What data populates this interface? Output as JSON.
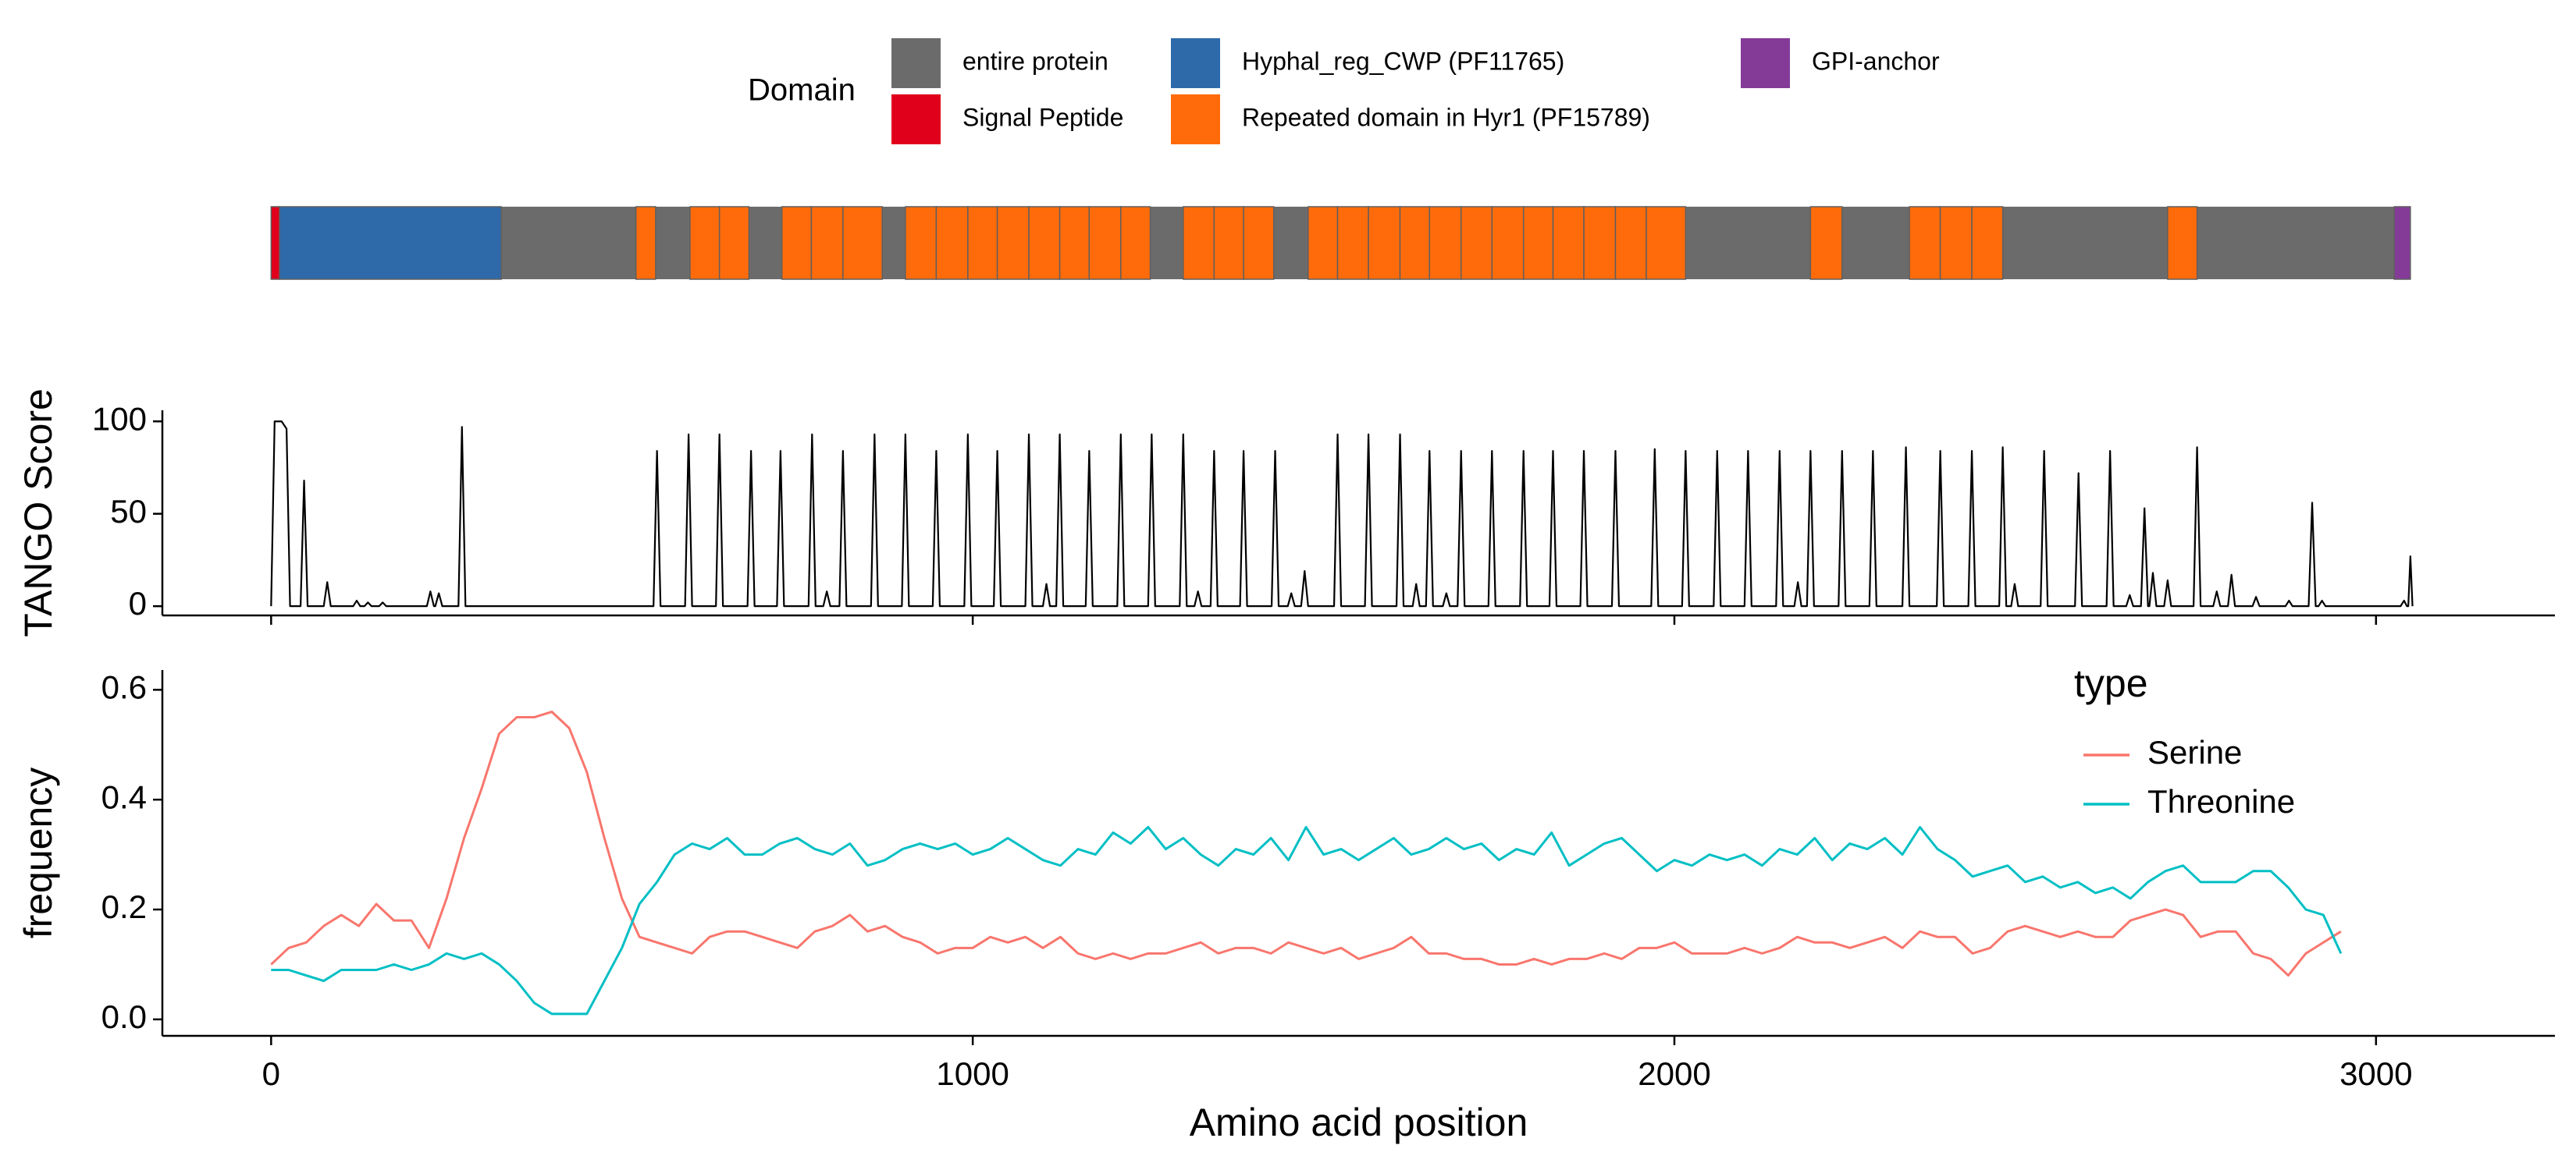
{
  "chart_data": [
    {
      "type": "domain_track",
      "legend_title": "Domain",
      "xlim": [
        -155,
        3255
      ],
      "series": [
        {
          "name": "entire protein",
          "color": "#6b6b6b",
          "segments": [
            [
              0,
              3049
            ]
          ]
        },
        {
          "name": "Signal Peptide",
          "color": "#e0001b",
          "segments": [
            [
              0,
              12
            ]
          ]
        },
        {
          "name": "Hyphal_reg_CWP (PF11765)",
          "color": "#2e6aa9",
          "segments": [
            [
              12,
              328
            ]
          ]
        },
        {
          "name": "Repeated domain in Hyr1 (PF15789)",
          "color": "#ff6b0a",
          "segments": [
            [
              520,
              548
            ],
            [
              597,
              639
            ],
            [
              639,
              681
            ],
            [
              728,
              770
            ],
            [
              770,
              815
            ],
            [
              815,
              871
            ],
            [
              904,
              948
            ],
            [
              948,
              993
            ],
            [
              993,
              1035
            ],
            [
              1035,
              1080
            ],
            [
              1080,
              1124
            ],
            [
              1124,
              1166
            ],
            [
              1166,
              1211
            ],
            [
              1211,
              1253
            ],
            [
              1300,
              1344
            ],
            [
              1344,
              1386
            ],
            [
              1386,
              1429
            ],
            [
              1478,
              1520
            ],
            [
              1520,
              1564
            ],
            [
              1564,
              1609
            ],
            [
              1609,
              1651
            ],
            [
              1651,
              1696
            ],
            [
              1696,
              1740
            ],
            [
              1740,
              1785
            ],
            [
              1785,
              1827
            ],
            [
              1827,
              1871
            ],
            [
              1871,
              1916
            ],
            [
              1916,
              1960
            ],
            [
              1960,
              2016
            ],
            [
              2194,
              2239
            ],
            [
              2335,
              2379
            ],
            [
              2379,
              2424
            ],
            [
              2424,
              2468
            ],
            [
              2703,
              2745
            ]
          ]
        },
        {
          "name": "GPI-anchor",
          "color": "#843b98",
          "segments": [
            [
              3026,
              3049
            ]
          ]
        }
      ]
    },
    {
      "type": "line",
      "y_label": "TANGO Score",
      "xlim": [
        -155,
        3255
      ],
      "xticks": [
        0,
        1000,
        2000,
        3000
      ],
      "ylim": [
        -5,
        106
      ],
      "yticks": [
        0,
        50,
        100
      ],
      "series": [
        {
          "color": "#000000",
          "x": [
            0,
            5,
            15,
            22,
            27,
            42,
            47,
            52,
            75,
            80,
            85,
            117,
            122,
            127,
            133,
            138,
            143,
            154,
            159,
            164,
            222,
            227,
            232,
            234,
            239,
            244,
            267,
            272,
            277,
            545,
            550,
            555,
            590,
            595,
            600,
            634,
            639,
            644,
            679,
            684,
            689,
            721,
            726,
            731,
            766,
            771,
            776,
            787,
            792,
            797,
            810,
            815,
            820,
            855,
            860,
            865,
            899,
            904,
            909,
            943,
            948,
            953,
            988,
            993,
            998,
            1030,
            1035,
            1040,
            1075,
            1080,
            1085,
            1100,
            1105,
            1110,
            1119,
            1124,
            1129,
            1161,
            1166,
            1171,
            1206,
            1211,
            1216,
            1250,
            1255,
            1260,
            1295,
            1300,
            1305,
            1316,
            1321,
            1326,
            1339,
            1344,
            1349,
            1381,
            1386,
            1391,
            1426,
            1431,
            1436,
            1449,
            1454,
            1459,
            1468,
            1473,
            1478,
            1515,
            1520,
            1525,
            1559,
            1564,
            1569,
            1604,
            1609,
            1614,
            1627,
            1632,
            1637,
            1646,
            1651,
            1656,
            1670,
            1675,
            1680,
            1691,
            1696,
            1701,
            1735,
            1740,
            1745,
            1780,
            1785,
            1790,
            1822,
            1827,
            1832,
            1866,
            1871,
            1876,
            1911,
            1916,
            1921,
            1967,
            1972,
            1977,
            2011,
            2016,
            2021,
            2056,
            2061,
            2066,
            2100,
            2105,
            2110,
            2145,
            2150,
            2155,
            2171,
            2176,
            2181,
            2189,
            2194,
            2199,
            2234,
            2239,
            2244,
            2278,
            2283,
            2288,
            2325,
            2330,
            2335,
            2374,
            2379,
            2384,
            2419,
            2424,
            2429,
            2463,
            2468,
            2473,
            2480,
            2485,
            2490,
            2522,
            2527,
            2532,
            2571,
            2576,
            2581,
            2616,
            2621,
            2626,
            2644,
            2649,
            2654,
            2665,
            2670,
            2675,
            2677,
            2682,
            2687,
            2698,
            2703,
            2708,
            2740,
            2745,
            2750,
            2768,
            2773,
            2778,
            2789,
            2794,
            2799,
            2824,
            2829,
            2834,
            2871,
            2876,
            2881,
            2904,
            2909,
            2914,
            2918,
            2923,
            2928,
            3035,
            3040,
            3044,
            3046,
            3049,
            3052
          ],
          "values": [
            0,
            100,
            100,
            96,
            0,
            0,
            68,
            0,
            0,
            13,
            0,
            0,
            3,
            0,
            0,
            2,
            0,
            0,
            2,
            0,
            0,
            8,
            0,
            0,
            7,
            0,
            0,
            97,
            0,
            0,
            84,
            0,
            0,
            93,
            0,
            0,
            93,
            0,
            0,
            84,
            0,
            0,
            84,
            0,
            0,
            93,
            0,
            0,
            8,
            0,
            0,
            84,
            0,
            0,
            93,
            0,
            0,
            93,
            0,
            0,
            84,
            0,
            0,
            93,
            0,
            0,
            84,
            0,
            0,
            93,
            0,
            0,
            12,
            0,
            0,
            93,
            0,
            0,
            84,
            0,
            0,
            93,
            0,
            0,
            93,
            0,
            0,
            93,
            0,
            0,
            8,
            0,
            0,
            84,
            0,
            0,
            84,
            0,
            0,
            84,
            0,
            0,
            7,
            0,
            0,
            19,
            0,
            0,
            93,
            0,
            0,
            93,
            0,
            0,
            93,
            0,
            0,
            12,
            0,
            0,
            84,
            0,
            0,
            7,
            0,
            0,
            84,
            0,
            0,
            84,
            0,
            0,
            84,
            0,
            0,
            84,
            0,
            0,
            84,
            0,
            0,
            84,
            0,
            0,
            85,
            0,
            0,
            84,
            0,
            0,
            84,
            0,
            0,
            84,
            0,
            0,
            84,
            0,
            0,
            13,
            0,
            0,
            84,
            0,
            0,
            84,
            0,
            0,
            84,
            0,
            0,
            86,
            0,
            0,
            84,
            0,
            0,
            84,
            0,
            0,
            86,
            0,
            0,
            12,
            0,
            0,
            84,
            0,
            0,
            72,
            0,
            0,
            84,
            0,
            0,
            6,
            0,
            0,
            53,
            0,
            0,
            18,
            0,
            0,
            14,
            0,
            0,
            86,
            0,
            0,
            8,
            0,
            0,
            17,
            0,
            0,
            5,
            0,
            0,
            3,
            0,
            0,
            56,
            0,
            0,
            3,
            0,
            0,
            3,
            0,
            0,
            27,
            0
          ]
        }
      ]
    },
    {
      "type": "line",
      "y_label": "frequency",
      "x_label": "Amino acid position",
      "legend_title": "type",
      "xlim": [
        -155,
        3255
      ],
      "xticks": [
        0,
        1000,
        2000,
        3000
      ],
      "ylim": [
        -0.03,
        0.636
      ],
      "yticks": [
        {
          "value": 0,
          "label": "0.0"
        },
        0.2,
        0.4,
        0.6
      ],
      "x": [
        0,
        25,
        50,
        75,
        100,
        125,
        150,
        175,
        200,
        225,
        250,
        275,
        300,
        325,
        350,
        375,
        400,
        425,
        450,
        475,
        500,
        525,
        550,
        575,
        600,
        625,
        650,
        675,
        700,
        725,
        750,
        775,
        800,
        825,
        850,
        875,
        900,
        925,
        950,
        975,
        1000,
        1025,
        1050,
        1075,
        1100,
        1125,
        1150,
        1175,
        1200,
        1225,
        1250,
        1275,
        1300,
        1325,
        1350,
        1375,
        1400,
        1425,
        1450,
        1475,
        1500,
        1525,
        1550,
        1575,
        1600,
        1625,
        1650,
        1675,
        1700,
        1725,
        1750,
        1775,
        1800,
        1825,
        1850,
        1875,
        1900,
        1925,
        1950,
        1975,
        2000,
        2025,
        2050,
        2075,
        2100,
        2125,
        2150,
        2175,
        2200,
        2225,
        2250,
        2275,
        2300,
        2325,
        2350,
        2375,
        2400,
        2425,
        2450,
        2475,
        2500,
        2525,
        2550,
        2575,
        2600,
        2625,
        2650,
        2675,
        2700,
        2725,
        2750,
        2775,
        2800,
        2825,
        2850,
        2875,
        2900,
        2925,
        2950
      ],
      "series": [
        {
          "name": "Serine",
          "color": "#F8766D",
          "values": [
            0.1,
            0.13,
            0.14,
            0.17,
            0.19,
            0.17,
            0.21,
            0.18,
            0.18,
            0.13,
            0.22,
            0.33,
            0.42,
            0.52,
            0.55,
            0.55,
            0.56,
            0.53,
            0.45,
            0.33,
            0.22,
            0.15,
            0.14,
            0.13,
            0.12,
            0.15,
            0.16,
            0.16,
            0.15,
            0.14,
            0.13,
            0.16,
            0.17,
            0.19,
            0.16,
            0.17,
            0.15,
            0.14,
            0.12,
            0.13,
            0.13,
            0.15,
            0.14,
            0.15,
            0.13,
            0.15,
            0.12,
            0.11,
            0.12,
            0.11,
            0.12,
            0.12,
            0.13,
            0.14,
            0.12,
            0.13,
            0.13,
            0.12,
            0.14,
            0.13,
            0.12,
            0.13,
            0.11,
            0.12,
            0.13,
            0.15,
            0.12,
            0.12,
            0.11,
            0.11,
            0.1,
            0.1,
            0.11,
            0.1,
            0.11,
            0.11,
            0.12,
            0.11,
            0.13,
            0.13,
            0.14,
            0.12,
            0.12,
            0.12,
            0.13,
            0.12,
            0.13,
            0.15,
            0.14,
            0.14,
            0.13,
            0.14,
            0.15,
            0.13,
            0.16,
            0.15,
            0.15,
            0.12,
            0.13,
            0.16,
            0.17,
            0.16,
            0.15,
            0.16,
            0.15,
            0.15,
            0.18,
            0.19,
            0.2,
            0.19,
            0.15,
            0.16,
            0.16,
            0.12,
            0.11,
            0.08,
            0.12,
            0.14,
            0.16
          ]
        },
        {
          "name": "Threonine",
          "color": "#00BFC4",
          "values": [
            0.09,
            0.09,
            0.08,
            0.07,
            0.09,
            0.09,
            0.09,
            0.1,
            0.09,
            0.1,
            0.12,
            0.11,
            0.12,
            0.1,
            0.07,
            0.03,
            0.01,
            0.01,
            0.01,
            0.07,
            0.13,
            0.21,
            0.25,
            0.3,
            0.32,
            0.31,
            0.33,
            0.3,
            0.3,
            0.32,
            0.33,
            0.31,
            0.3,
            0.32,
            0.28,
            0.29,
            0.31,
            0.32,
            0.31,
            0.32,
            0.3,
            0.31,
            0.33,
            0.31,
            0.29,
            0.28,
            0.31,
            0.3,
            0.34,
            0.32,
            0.35,
            0.31,
            0.33,
            0.3,
            0.28,
            0.31,
            0.3,
            0.33,
            0.29,
            0.35,
            0.3,
            0.31,
            0.29,
            0.31,
            0.33,
            0.3,
            0.31,
            0.33,
            0.31,
            0.32,
            0.29,
            0.31,
            0.3,
            0.34,
            0.28,
            0.3,
            0.32,
            0.33,
            0.3,
            0.27,
            0.29,
            0.28,
            0.3,
            0.29,
            0.3,
            0.28,
            0.31,
            0.3,
            0.33,
            0.29,
            0.32,
            0.31,
            0.33,
            0.3,
            0.35,
            0.31,
            0.29,
            0.26,
            0.27,
            0.28,
            0.25,
            0.26,
            0.24,
            0.25,
            0.23,
            0.24,
            0.22,
            0.25,
            0.27,
            0.28,
            0.25,
            0.25,
            0.25,
            0.27,
            0.27,
            0.24,
            0.2,
            0.19,
            0.12
          ]
        }
      ]
    }
  ]
}
